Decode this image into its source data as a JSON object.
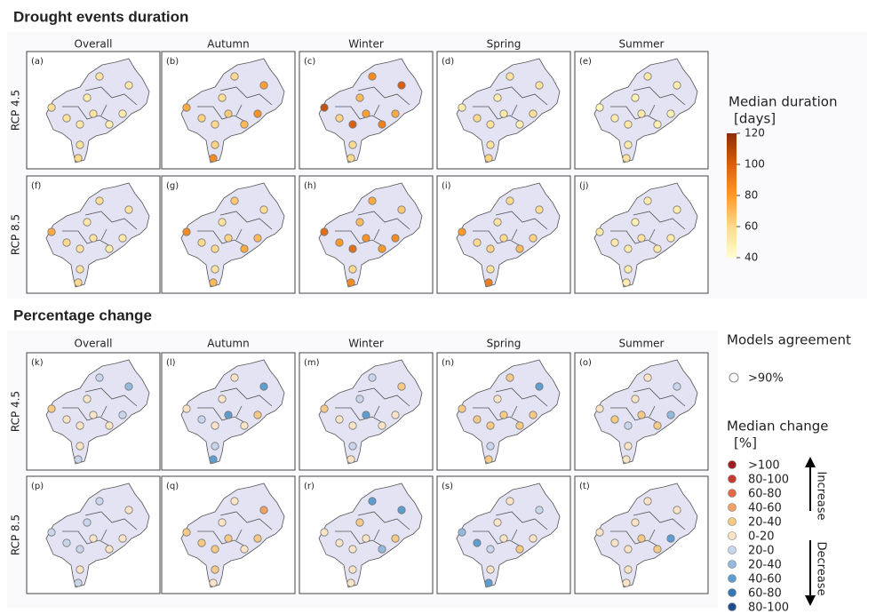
{
  "sections": [
    {
      "title": "Drought events duration",
      "scale": "duration",
      "columns": [
        "Overall",
        "Autumn",
        "Winter",
        "Spring",
        "Summer"
      ],
      "rows": [
        {
          "label": "RCP 4.5",
          "panels": [
            {
              "label": "(a)",
              "values": [
                55,
                52,
                50,
                58,
                54,
                50,
                55,
                52,
                48,
                55,
                60
              ]
            },
            {
              "label": "(b)",
              "values": [
                60,
                78,
                58,
                75,
                65,
                82,
                62,
                60,
                70,
                62,
                85
              ]
            },
            {
              "label": "(c)",
              "values": [
                85,
                100,
                70,
                105,
                78,
                75,
                62,
                100,
                88,
                60,
                60
              ]
            },
            {
              "label": "(d)",
              "values": [
                55,
                55,
                50,
                50,
                52,
                58,
                60,
                55,
                48,
                55,
                62
              ]
            },
            {
              "label": "(e)",
              "values": [
                52,
                50,
                48,
                45,
                52,
                48,
                50,
                52,
                48,
                50,
                55
              ]
            }
          ]
        },
        {
          "label": "RCP 8.5",
          "panels": [
            {
              "label": "(f)",
              "values": [
                58,
                55,
                52,
                75,
                55,
                52,
                60,
                55,
                50,
                55,
                60
              ]
            },
            {
              "label": "(g)",
              "values": [
                65,
                58,
                55,
                85,
                62,
                70,
                60,
                60,
                75,
                55,
                70
              ]
            },
            {
              "label": "(h)",
              "values": [
                75,
                65,
                70,
                95,
                82,
                85,
                80,
                95,
                80,
                60,
                85
              ]
            },
            {
              "label": "(i)",
              "values": [
                60,
                58,
                55,
                80,
                60,
                62,
                60,
                62,
                70,
                55,
                90
              ]
            },
            {
              "label": "(j)",
              "values": [
                50,
                50,
                48,
                52,
                55,
                50,
                52,
                50,
                52,
                50,
                50
              ]
            }
          ]
        }
      ]
    },
    {
      "title": "Percentage change",
      "scale": "change",
      "columns": [
        "Overall",
        "Autumn",
        "Winter",
        "Spring",
        "Summer"
      ],
      "rows": [
        {
          "label": "RCP 4.5",
          "panels": [
            {
              "label": "(k)",
              "values": [
                -10,
                -30,
                10,
                30,
                15,
                -10,
                10,
                10,
                10,
                10,
                -20
              ]
            },
            {
              "label": "(l)",
              "values": [
                10,
                -50,
                10,
                10,
                -50,
                20,
                -20,
                10,
                10,
                -20,
                -50
              ]
            },
            {
              "label": "(m)",
              "values": [
                -10,
                20,
                -10,
                30,
                -50,
                10,
                10,
                10,
                10,
                -20,
                10
              ]
            },
            {
              "label": "(n)",
              "values": [
                30,
                -50,
                10,
                30,
                20,
                30,
                30,
                30,
                20,
                -20,
                30
              ]
            },
            {
              "label": "(o)",
              "values": [
                10,
                -10,
                10,
                10,
                30,
                -30,
                30,
                -10,
                20,
                10,
                10
              ]
            }
          ]
        },
        {
          "label": "RCP 8.5",
          "panels": [
            {
              "label": "(p)",
              "values": [
                -10,
                10,
                -10,
                -10,
                10,
                10,
                -10,
                -10,
                10,
                10,
                -10
              ]
            },
            {
              "label": "(q)",
              "values": [
                10,
                50,
                10,
                30,
                30,
                30,
                30,
                30,
                10,
                30,
                10
              ]
            },
            {
              "label": "(r)",
              "values": [
                -50,
                -50,
                20,
                10,
                10,
                30,
                10,
                10,
                -30,
                10,
                10
              ]
            },
            {
              "label": "(s)",
              "values": [
                10,
                -10,
                10,
                -30,
                10,
                10,
                -50,
                -10,
                30,
                10,
                -50
              ]
            },
            {
              "label": "(t)",
              "values": [
                10,
                10,
                10,
                10,
                30,
                -50,
                10,
                10,
                30,
                10,
                10
              ]
            }
          ]
        }
      ]
    }
  ],
  "legend_duration": {
    "title": "Median duration",
    "unit": "[days]",
    "lim": [
      40,
      120
    ],
    "ticks": [
      40,
      60,
      80,
      100,
      120
    ],
    "colors": [
      "#ffffcc",
      "#fed98e",
      "#fe9929",
      "#d95f0e",
      "#8c2d04"
    ]
  },
  "legend_agreement": {
    "title": "Models agreement",
    "label": ">90%"
  },
  "legend_change": {
    "title": "Median change",
    "unit": "[%]",
    "increase": "Increase",
    "decrease": "Decrease",
    "items": [
      {
        "label": ">100",
        "lower": 100,
        "color": "#a11d21"
      },
      {
        "label": "80-100",
        "lower": 80,
        "color": "#c93a2e"
      },
      {
        "label": "60-80",
        "lower": 60,
        "color": "#e3694a"
      },
      {
        "label": "40-60",
        "lower": 40,
        "color": "#f0a262"
      },
      {
        "label": "20-40",
        "lower": 20,
        "color": "#f6c985"
      },
      {
        "label": "0-20",
        "lower": 0,
        "color": "#fbe4c6"
      },
      {
        "label": "20-0",
        "lower": -20,
        "color": "#c8d5ea"
      },
      {
        "label": "20-40",
        "lower": -40,
        "color": "#93badc"
      },
      {
        "label": "40-60",
        "lower": -60,
        "color": "#5d9dd0"
      },
      {
        "label": "60-80",
        "lower": -80,
        "color": "#3576b5"
      },
      {
        "label": "80-100",
        "lower": -100,
        "color": "#1f4e8c"
      }
    ]
  }
}
